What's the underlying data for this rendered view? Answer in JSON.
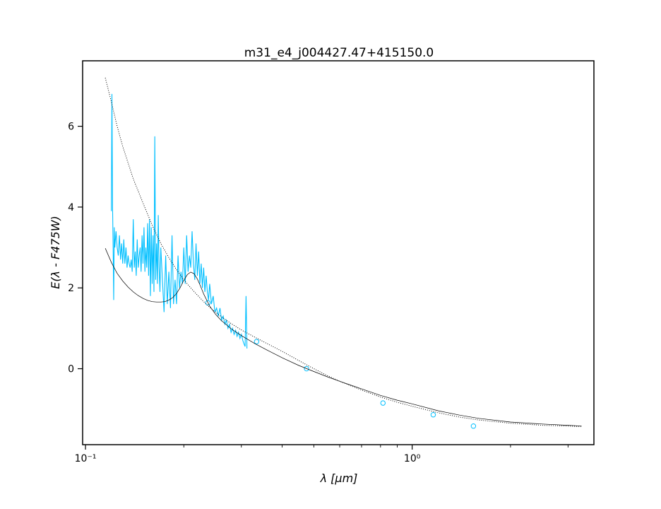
{
  "chart_data": {
    "type": "line",
    "title": "m31_e4_j004427.47+415150.0",
    "xlabel": "λ [μm]",
    "ylabel": "E(λ - F475W)",
    "xscale": "log",
    "xlim": [
      0.098,
      3.6
    ],
    "ylim": [
      -1.88,
      7.62
    ],
    "x_ticks": [
      {
        "value": 0.1,
        "label": "10⁻¹"
      },
      {
        "value": 1.0,
        "label": "10⁰"
      }
    ],
    "y_ticks": [
      {
        "value": 0,
        "label": "0"
      },
      {
        "value": 2,
        "label": "2"
      },
      {
        "value": 4,
        "label": "4"
      },
      {
        "value": 6,
        "label": "6"
      }
    ],
    "grid": false,
    "legend": "none",
    "colors": {
      "spectrum": "#00bfff",
      "model": "#000000"
    },
    "series": [
      {
        "style": "spectrum-line",
        "color": "#00bfff",
        "x": [
          0.12,
          0.1205,
          0.121,
          0.1215,
          0.122,
          0.1225,
          0.123,
          0.124,
          0.125,
          0.126,
          0.127,
          0.128,
          0.129,
          0.13,
          0.131,
          0.132,
          0.133,
          0.134,
          0.135,
          0.136,
          0.137,
          0.138,
          0.139,
          0.14,
          0.141,
          0.142,
          0.143,
          0.144,
          0.145,
          0.146,
          0.147,
          0.148,
          0.149,
          0.15,
          0.151,
          0.152,
          0.153,
          0.154,
          0.155,
          0.156,
          0.157,
          0.158,
          0.159,
          0.16,
          0.161,
          0.162,
          0.163,
          0.164,
          0.165,
          0.166,
          0.167,
          0.168,
          0.169,
          0.17,
          0.172,
          0.174,
          0.176,
          0.178,
          0.18,
          0.182,
          0.184,
          0.186,
          0.188,
          0.19,
          0.192,
          0.194,
          0.196,
          0.198,
          0.2,
          0.202,
          0.204,
          0.206,
          0.208,
          0.21,
          0.212,
          0.214,
          0.216,
          0.218,
          0.22,
          0.222,
          0.224,
          0.226,
          0.228,
          0.23,
          0.232,
          0.234,
          0.236,
          0.238,
          0.24,
          0.243,
          0.246,
          0.249,
          0.252,
          0.255,
          0.258,
          0.261,
          0.264,
          0.267,
          0.27,
          0.273,
          0.276,
          0.279,
          0.282,
          0.285,
          0.288,
          0.291,
          0.294,
          0.297,
          0.3,
          0.303,
          0.306,
          0.308,
          0.31,
          0.312
        ],
        "y": [
          3.9,
          6.8,
          4.0,
          3.0,
          1.7,
          3.5,
          3.0,
          3.4,
          3.0,
          2.8,
          3.3,
          2.7,
          3.1,
          2.6,
          3.2,
          2.6,
          3.0,
          2.5,
          2.8,
          2.6,
          2.5,
          2.7,
          2.4,
          3.7,
          2.5,
          2.9,
          2.3,
          3.2,
          2.5,
          2.8,
          3.0,
          2.4,
          3.3,
          2.6,
          3.5,
          2.4,
          3.0,
          2.5,
          3.6,
          2.3,
          3.7,
          1.8,
          3.5,
          2.1,
          3.3,
          1.9,
          5.75,
          2.2,
          3.1,
          2.1,
          3.8,
          2.5,
          1.9,
          3.0,
          2.2,
          1.4,
          2.8,
          1.6,
          2.4,
          1.5,
          3.3,
          1.6,
          2.2,
          1.6,
          2.8,
          2.0,
          2.4,
          2.1,
          3.0,
          2.1,
          3.3,
          2.4,
          2.8,
          2.5,
          3.4,
          2.6,
          2.2,
          3.1,
          2.3,
          2.9,
          2.1,
          2.6,
          2.0,
          2.5,
          1.9,
          2.3,
          1.9,
          1.7,
          2.1,
          1.6,
          1.8,
          1.4,
          1.5,
          1.3,
          1.5,
          1.2,
          1.3,
          1.1,
          1.2,
          1.0,
          1.1,
          0.9,
          1.0,
          0.85,
          0.95,
          0.8,
          0.9,
          0.75,
          0.85,
          0.7,
          0.6,
          0.55,
          1.8,
          0.5
        ]
      },
      {
        "style": "photometry-markers",
        "color": "#00bfff",
        "x": [
          0.237,
          0.334,
          0.475,
          0.814,
          1.16,
          1.54
        ],
        "y": [
          1.63,
          0.67,
          0.0,
          -0.85,
          -1.14,
          -1.42
        ]
      },
      {
        "style": "model-solid",
        "color": "#000000",
        "x": [
          0.115,
          0.12,
          0.125,
          0.13,
          0.135,
          0.14,
          0.145,
          0.15,
          0.155,
          0.16,
          0.165,
          0.17,
          0.175,
          0.18,
          0.185,
          0.19,
          0.195,
          0.2,
          0.205,
          0.21,
          0.215,
          0.22,
          0.225,
          0.23,
          0.24,
          0.25,
          0.26,
          0.28,
          0.3,
          0.33,
          0.36,
          0.4,
          0.45,
          0.5,
          0.55,
          0.6,
          0.7,
          0.8,
          0.9,
          1.0,
          1.2,
          1.4,
          1.6,
          2.0,
          2.5,
          3.0,
          3.3
        ],
        "y": [
          2.98,
          2.63,
          2.36,
          2.17,
          2.02,
          1.9,
          1.81,
          1.74,
          1.69,
          1.66,
          1.65,
          1.65,
          1.66,
          1.7,
          1.76,
          1.86,
          2.01,
          2.19,
          2.33,
          2.39,
          2.35,
          2.22,
          2.04,
          1.85,
          1.55,
          1.35,
          1.2,
          0.98,
          0.82,
          0.62,
          0.46,
          0.27,
          0.08,
          -0.07,
          -0.2,
          -0.31,
          -0.5,
          -0.66,
          -0.78,
          -0.87,
          -1.04,
          -1.15,
          -1.23,
          -1.32,
          -1.37,
          -1.4,
          -1.42
        ]
      },
      {
        "style": "model-dotted",
        "color": "#000000",
        "x": [
          0.115,
          0.12,
          0.125,
          0.13,
          0.14,
          0.15,
          0.16,
          0.17,
          0.18,
          0.19,
          0.2,
          0.21,
          0.22,
          0.23,
          0.24,
          0.25,
          0.26,
          0.28,
          0.3,
          0.33,
          0.36,
          0.4,
          0.45,
          0.5,
          0.55,
          0.6,
          0.7,
          0.8,
          0.9,
          1.0,
          1.2,
          1.4,
          1.6,
          2.0,
          2.5,
          3.0,
          3.3
        ],
        "y": [
          7.2,
          6.6,
          6.0,
          5.5,
          4.7,
          4.1,
          3.55,
          3.1,
          2.75,
          2.45,
          2.2,
          2.0,
          1.82,
          1.66,
          1.52,
          1.4,
          1.29,
          1.11,
          0.96,
          0.78,
          0.62,
          0.43,
          0.2,
          0.0,
          -0.17,
          -0.31,
          -0.53,
          -0.7,
          -0.83,
          -0.93,
          -1.09,
          -1.2,
          -1.27,
          -1.35,
          -1.4,
          -1.42,
          -1.43
        ]
      }
    ]
  }
}
